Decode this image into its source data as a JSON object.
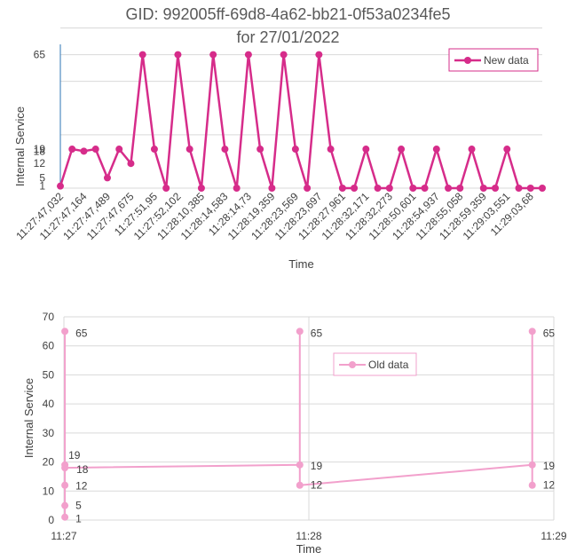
{
  "title_line1": "GID: 992005ff-69d8-4a62-bb21-0f53a0234fe5",
  "title_line2": "for 27/01/2022",
  "chart_data": [
    {
      "type": "line",
      "categories": [
        "11:27:47,032",
        "11:27:47,164",
        "11:27:47,489",
        "11:27:47,675",
        "11:27:51,95",
        "11:27:52,102",
        "11:28:10,385",
        "11:28:14,583",
        "11:28:14,73",
        "11:28:19,359",
        "11:28:23,569",
        "11:28:23,697",
        "11:28:27,961",
        "11:28:32,171",
        "11:28:32,273",
        "11:28:50,601",
        "11:28:54,937",
        "11:28:55,058",
        "11:28:59,359",
        "11:29:03,551",
        "11:29:03,68"
      ],
      "x": [
        0,
        1,
        2,
        3,
        4,
        5,
        6,
        7,
        8,
        9,
        10,
        11,
        12,
        13,
        14,
        15,
        16,
        17,
        18,
        19,
        20,
        21,
        22,
        23,
        24,
        25,
        26,
        27,
        28,
        29,
        30,
        31,
        32,
        33,
        34,
        35,
        36,
        37,
        38,
        39,
        40,
        41
      ],
      "series": [
        {
          "name": "New data",
          "values": [
            1,
            19,
            18,
            19,
            5,
            19,
            12,
            65,
            19,
            0,
            65,
            19,
            0,
            65,
            19,
            0,
            65,
            19,
            0,
            65,
            19,
            0,
            65,
            19,
            0,
            0,
            19,
            0,
            0,
            19,
            0,
            0,
            19,
            0,
            0,
            19,
            0,
            0,
            19,
            0,
            0,
            0
          ],
          "color": "#d62c8a"
        }
      ],
      "yticks": [
        1,
        5,
        12,
        18,
        19,
        65
      ],
      "ylim": [
        0,
        70
      ],
      "xlabel": "Time",
      "ylabel": "Internal Service",
      "legend_position": "top-right",
      "grid": true
    },
    {
      "type": "scatter",
      "x": [
        "11:27:00.2",
        "11:27:00.2",
        "11:27:00.2",
        "11:27:00.2",
        "11:27:00.2",
        "11:27:00.2",
        "11:27:58",
        "11:27:58",
        "11:27:58",
        "11:28:55",
        "11:28:55",
        "11:28:55"
      ],
      "x_minutes": [
        0.004,
        0.004,
        0.004,
        0.004,
        0.004,
        0.004,
        0.963,
        0.963,
        0.963,
        1.912,
        1.912,
        1.912
      ],
      "series": [
        {
          "name": "Old data",
          "values": [
            1,
            5,
            12,
            19,
            65,
            18,
            19,
            65,
            12,
            19,
            65,
            12
          ],
          "labels": [
            "1",
            "5",
            "12",
            "19",
            "65",
            "18",
            "19",
            "65",
            "12",
            "19",
            "65",
            "12"
          ],
          "color": "#f2a0cc"
        }
      ],
      "xticks": [
        "11:27",
        "11:28",
        "11:29"
      ],
      "yticks": [
        0,
        10,
        20,
        30,
        40,
        50,
        60,
        70
      ],
      "ylim": [
        0,
        70
      ],
      "xlabel": "Time",
      "ylabel": "Internal Service",
      "legend_position": "top-center",
      "grid": true
    }
  ]
}
